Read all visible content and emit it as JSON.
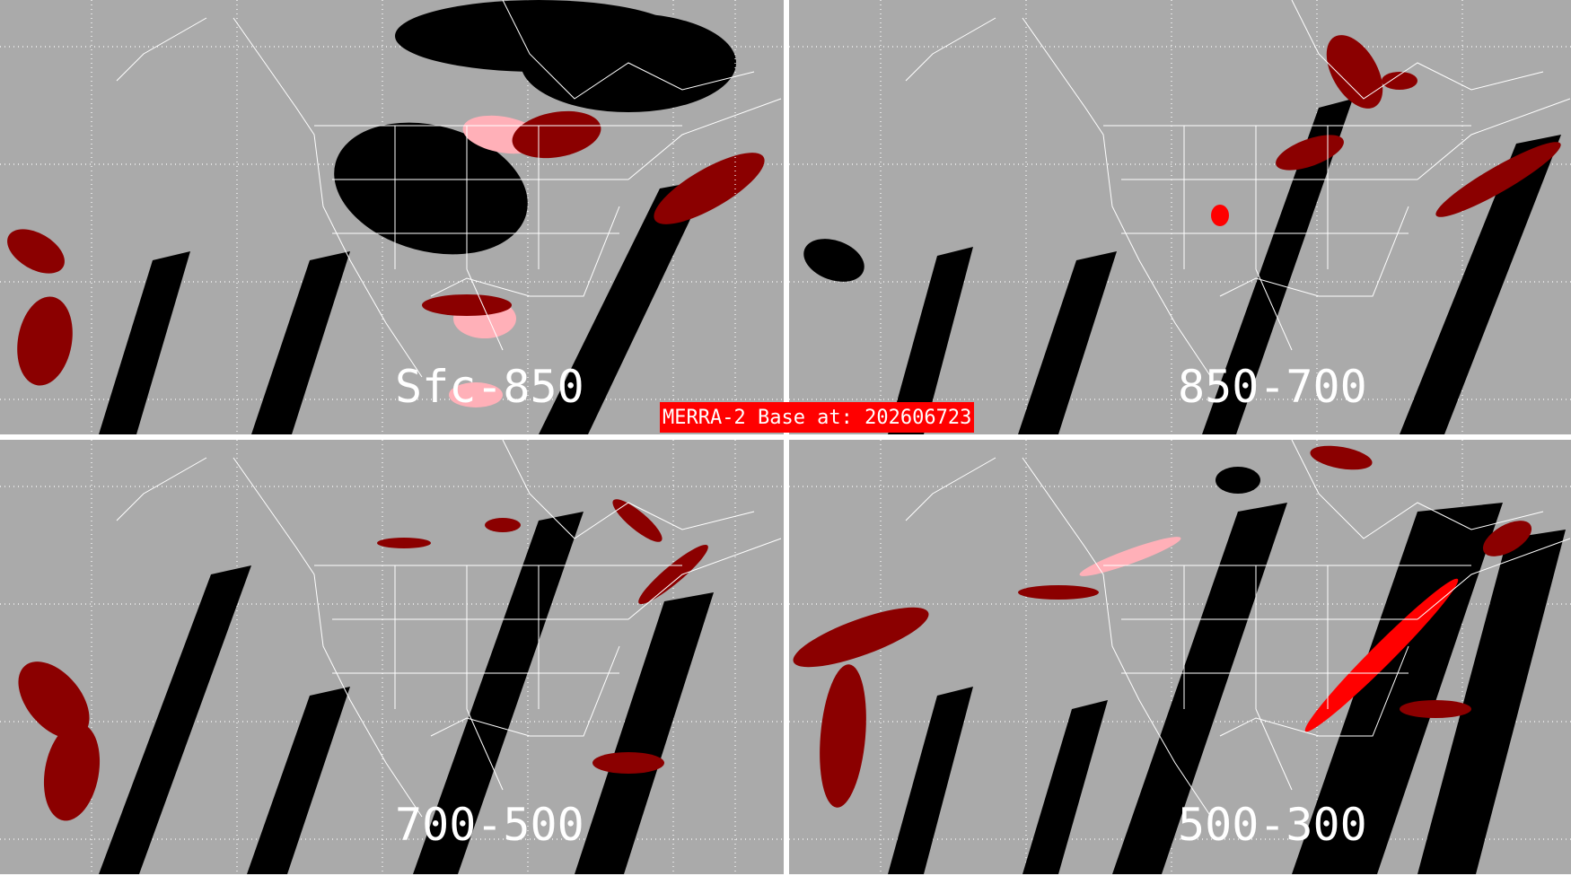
{
  "banner": {
    "text": "MERRA-2 Base at: 202606723"
  },
  "panels": [
    {
      "label": "Sfc-850"
    },
    {
      "label": "850-700"
    },
    {
      "label": "700-500"
    },
    {
      "label": "500-300"
    }
  ],
  "colors": {
    "background": "#aaaaaa",
    "no_data_swath": "#000000",
    "low": "#8b0000",
    "mid": "#ff0000",
    "high": "#ffb0b8",
    "coastline": "#ffffff",
    "divider": "#ffffff"
  }
}
